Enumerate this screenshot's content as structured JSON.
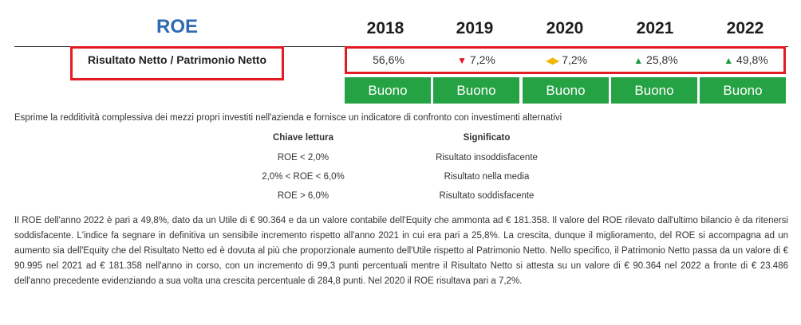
{
  "title": "ROE",
  "years": [
    "2018",
    "2019",
    "2020",
    "2021",
    "2022"
  ],
  "row_label": "Risultato Netto / Patrimonio Netto",
  "values": [
    {
      "trend": "",
      "text": "56,6%"
    },
    {
      "trend": "▼",
      "text": "7,2%"
    },
    {
      "trend": "◀▶",
      "text": "7,2%"
    },
    {
      "trend": "▲",
      "text": "25,8%"
    },
    {
      "trend": "▲",
      "text": "49,8%"
    }
  ],
  "ratings": [
    "Buono",
    "Buono",
    "Buono",
    "Buono",
    "Buono"
  ],
  "colors": {
    "title": "#2f6ab3",
    "highlight_border": "#e41b23",
    "rating_bg": "#25a244",
    "trend_down": "#e3141b",
    "trend_up": "#1a9a3a",
    "trend_flat": "#f2b600"
  },
  "description": "Esprime la redditività complessiva dei mezzi propri investiti nell'azienda e fornisce un indicatore di confronto con investimenti alternativi",
  "legend": {
    "head_key": "Chiave lettura",
    "head_meaning": "Significato",
    "rows": [
      {
        "key": "ROE < 2,0%",
        "meaning": "Risultato insoddisfacente"
      },
      {
        "key": "2,0% < ROE < 6,0%",
        "meaning": "Risultato nella media"
      },
      {
        "key": "ROE > 6,0%",
        "meaning": "Risultato soddisfacente"
      }
    ]
  },
  "analysis": "Il ROE dell'anno 2022 è pari a 49,8%, dato da un Utile di € 90.364 e da un valore contabile dell'Equity che ammonta ad € 181.358. Il valore del ROE rilevato dall'ultimo bilancio è da ritenersi soddisfacente. L'indice fa segnare in definitiva un sensibile incremento rispetto all'anno 2021 in cui era pari a 25,8%. La crescita, dunque il miglioramento, del ROE si accompagna ad un aumento sia dell'Equity che del Risultato Netto ed è dovuta al più che proporzionale aumento dell'Utile rispetto al Patrimonio Netto. Nello specifico, il Patrimonio Netto passa da un valore di € 90.995 nel 2021 ad € 181.358 nell'anno in corso, con un incremento di 99,3 punti percentuali mentre il Risultato Netto si attesta su un valore di € 90.364 nel 2022 a fronte di € 23.486 dell'anno precedente evidenziando a sua volta una crescita percentuale di 284,8 punti. Nel 2020 il ROE risultava pari a 7,2%."
}
